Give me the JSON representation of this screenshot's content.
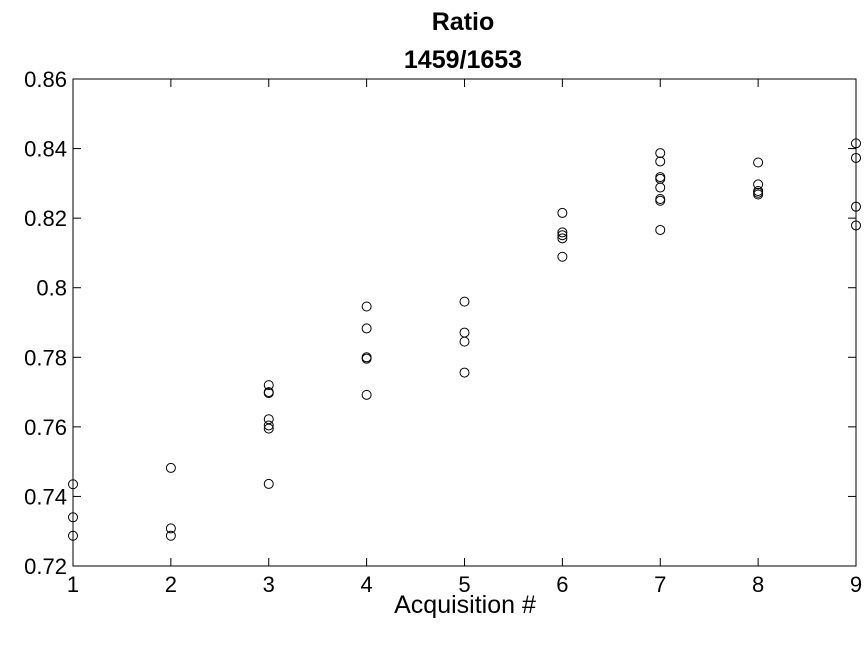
{
  "chart_data": {
    "type": "scatter",
    "title": "Ratio",
    "subtitle": "1459/1653",
    "xlabel": "Acquisition #",
    "ylabel": "",
    "xlim": [
      1,
      9
    ],
    "ylim": [
      0.72,
      0.86
    ],
    "xticks": [
      "1",
      "2",
      "3",
      "4",
      "5",
      "6",
      "7",
      "8",
      "9"
    ],
    "yticks": [
      "0.72",
      "0.74",
      "0.76",
      "0.78",
      "0.8",
      "0.82",
      "0.84",
      "0.86"
    ],
    "marker": "open-circle",
    "grid": false,
    "colors": {
      "marker": "#000000",
      "axes": "#000000"
    },
    "points": [
      {
        "x": 1,
        "y": 0.7435
      },
      {
        "x": 1,
        "y": 0.734
      },
      {
        "x": 1,
        "y": 0.7287
      },
      {
        "x": 2,
        "y": 0.7482
      },
      {
        "x": 2,
        "y": 0.7308
      },
      {
        "x": 2,
        "y": 0.7287
      },
      {
        "x": 3,
        "y": 0.772
      },
      {
        "x": 3,
        "y": 0.77
      },
      {
        "x": 3,
        "y": 0.7697
      },
      {
        "x": 3,
        "y": 0.7622
      },
      {
        "x": 3,
        "y": 0.7604
      },
      {
        "x": 3,
        "y": 0.7595
      },
      {
        "x": 3,
        "y": 0.7436
      },
      {
        "x": 4,
        "y": 0.7946
      },
      {
        "x": 4,
        "y": 0.7883
      },
      {
        "x": 4,
        "y": 0.78
      },
      {
        "x": 4,
        "y": 0.7796
      },
      {
        "x": 4,
        "y": 0.7692
      },
      {
        "x": 5,
        "y": 0.796
      },
      {
        "x": 5,
        "y": 0.7871
      },
      {
        "x": 5,
        "y": 0.7845
      },
      {
        "x": 5,
        "y": 0.7756
      },
      {
        "x": 6,
        "y": 0.8215
      },
      {
        "x": 6,
        "y": 0.8159
      },
      {
        "x": 6,
        "y": 0.8151
      },
      {
        "x": 6,
        "y": 0.8142
      },
      {
        "x": 6,
        "y": 0.8089
      },
      {
        "x": 7,
        "y": 0.8387
      },
      {
        "x": 7,
        "y": 0.8363
      },
      {
        "x": 7,
        "y": 0.8318
      },
      {
        "x": 7,
        "y": 0.8313
      },
      {
        "x": 7,
        "y": 0.8288
      },
      {
        "x": 7,
        "y": 0.8255
      },
      {
        "x": 7,
        "y": 0.825
      },
      {
        "x": 7,
        "y": 0.8166
      },
      {
        "x": 8,
        "y": 0.836
      },
      {
        "x": 8,
        "y": 0.8297
      },
      {
        "x": 8,
        "y": 0.8278
      },
      {
        "x": 8,
        "y": 0.8273
      },
      {
        "x": 8,
        "y": 0.8268
      },
      {
        "x": 9,
        "y": 0.8415
      },
      {
        "x": 9,
        "y": 0.8373
      },
      {
        "x": 9,
        "y": 0.8233
      },
      {
        "x": 9,
        "y": 0.8179
      }
    ]
  }
}
